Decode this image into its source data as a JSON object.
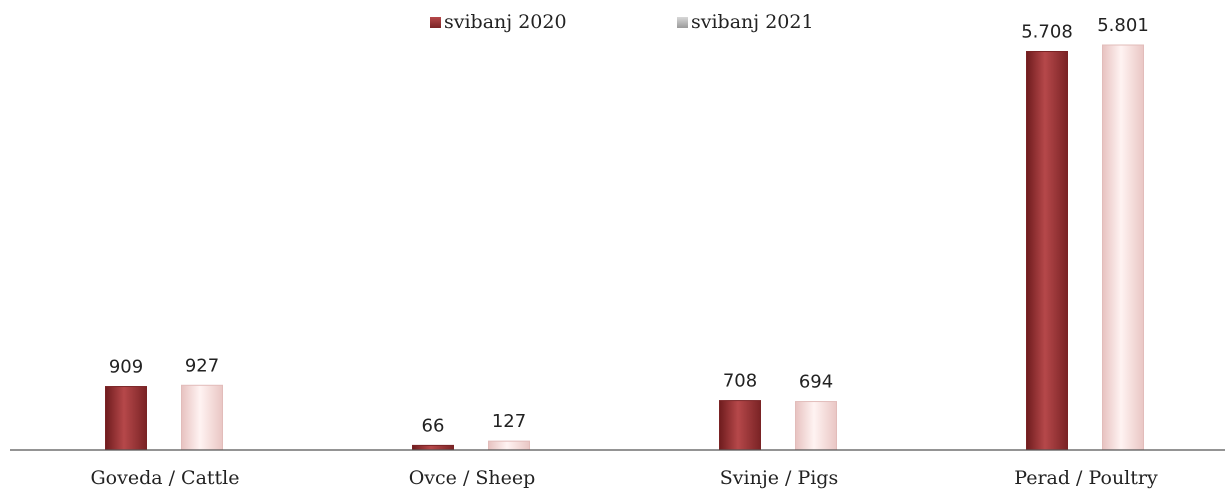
{
  "chart_data": {
    "type": "bar",
    "categories": [
      "Goveda / Cattle",
      "Ovce / Sheep",
      "Svinje / Pigs",
      "Perad / Poultry"
    ],
    "series": [
      {
        "name": "svibanj 2020",
        "values": [
          909,
          66,
          708,
          5708
        ],
        "labels": [
          "909",
          "66",
          "708",
          "5.708"
        ],
        "color": "#a3393b"
      },
      {
        "name": "svibanj 2021",
        "values": [
          927,
          127,
          694,
          5801
        ],
        "labels": [
          "927",
          "127",
          "694",
          "5.801"
        ],
        "color": "#f6d4d2"
      }
    ],
    "title": "",
    "xlabel": "",
    "ylabel": "",
    "ylim": [
      0,
      5801
    ],
    "grid": false,
    "legend_position": "top-center"
  }
}
